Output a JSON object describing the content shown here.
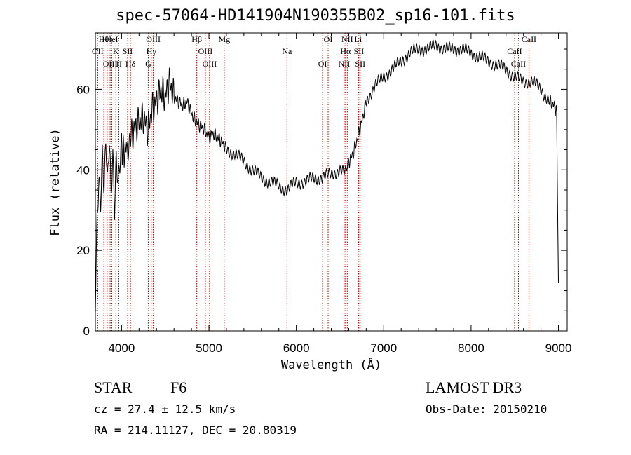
{
  "chart_data": {
    "type": "line",
    "title": "spec-57064-HD141904N190355B02_sp16-101.fits",
    "xlabel": "Wavelength (Å)",
    "ylabel": "Flux (relative)",
    "xlim": [
      3700,
      9100
    ],
    "ylim": [
      0,
      74
    ],
    "xticks": [
      4000,
      5000,
      6000,
      7000,
      8000,
      9000
    ],
    "yticks": [
      0,
      20,
      40,
      60
    ],
    "series": [
      {
        "name": "flux",
        "x": [
          3700,
          3720,
          3740,
          3760,
          3780,
          3800,
          3820,
          3840,
          3860,
          3880,
          3900,
          3920,
          3940,
          3960,
          3980,
          4000,
          4030,
          4060,
          4100,
          4150,
          4200,
          4250,
          4300,
          4350,
          4400,
          4450,
          4500,
          4550,
          4600,
          4650,
          4700,
          4750,
          4800,
          4850,
          4900,
          4950,
          5000,
          5050,
          5100,
          5150,
          5200,
          5300,
          5400,
          5500,
          5600,
          5700,
          5800,
          5900,
          6000,
          6100,
          6200,
          6300,
          6400,
          6500,
          6560,
          6600,
          6650,
          6700,
          6750,
          6800,
          6900,
          7000,
          7100,
          7200,
          7300,
          7400,
          7500,
          7600,
          7700,
          7800,
          7900,
          8000,
          8100,
          8200,
          8300,
          8400,
          8500,
          8600,
          8700,
          8800,
          8900,
          8950,
          8980,
          9000
        ],
        "y": [
          8,
          28,
          36,
          30,
          42,
          34,
          48,
          38,
          50,
          36,
          44,
          30,
          42,
          35,
          40,
          46,
          44,
          46,
          48,
          50,
          52,
          53,
          50,
          55,
          57,
          60,
          58,
          62,
          58,
          57,
          56,
          57,
          54,
          52,
          51,
          50,
          48,
          49,
          48,
          47,
          45,
          44,
          42,
          40,
          38,
          37,
          36,
          35,
          37,
          37,
          38,
          38,
          39,
          40,
          39,
          42,
          44,
          48,
          52,
          57,
          61,
          63,
          65,
          67,
          69,
          70,
          70,
          71,
          70,
          70,
          70,
          69,
          68,
          67,
          66,
          65,
          63,
          62,
          62,
          60,
          57,
          56,
          54,
          12
        ],
        "color": "#000000"
      }
    ],
    "emission_lines": [
      {
        "name": "Hθ",
        "x": 3797
      },
      {
        "name": "OII",
        "x": 3727
      },
      {
        "name": "OIII",
        "x": 3869
      },
      {
        "name": "HeI",
        "x": 3889
      },
      {
        "name": "K",
        "x": 3934
      },
      {
        "name": "H",
        "x": 3969
      },
      {
        "name": "Hη",
        "x": 3835
      },
      {
        "name": "SII",
        "x": 4069
      },
      {
        "name": "Hδ",
        "x": 4102
      },
      {
        "name": "OIII",
        "x": 4363
      },
      {
        "name": "Hγ",
        "x": 4340
      },
      {
        "name": "G",
        "x": 4305
      },
      {
        "name": "Hβ",
        "x": 4861
      },
      {
        "name": "OIII",
        "x": 4959
      },
      {
        "name": "OIII",
        "x": 5007
      },
      {
        "name": "Mg",
        "x": 5175
      },
      {
        "name": "Na",
        "x": 5893
      },
      {
        "name": "OI",
        "x": 6300
      },
      {
        "name": "OI",
        "x": 6364
      },
      {
        "name": "Hα",
        "x": 6563
      },
      {
        "name": "NII",
        "x": 6548
      },
      {
        "name": "NII",
        "x": 6583
      },
      {
        "name": "SII",
        "x": 6716
      },
      {
        "name": "SII",
        "x": 6731
      },
      {
        "name": "Li",
        "x": 6708
      },
      {
        "name": "CaII",
        "x": 8498
      },
      {
        "name": "CaII",
        "x": 8542
      },
      {
        "name": "CaII",
        "x": 8662
      }
    ]
  },
  "info": {
    "object_class": "STAR",
    "subclass": "F6",
    "survey": "LAMOST DR3",
    "redshift": "cz = 27.4 ± 12.5 km/s",
    "obs_date": "Obs-Date: 20150210",
    "coords": "RA = 214.11127, DEC =  20.80319"
  }
}
